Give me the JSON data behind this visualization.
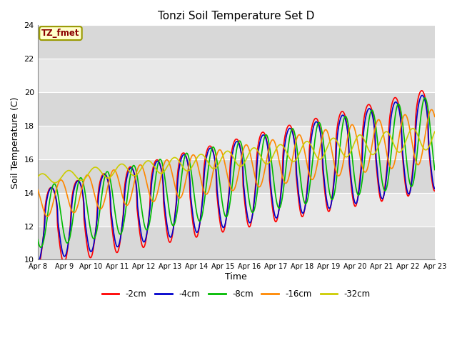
{
  "title": "Tonzi Soil Temperature Set D",
  "xlabel": "Time",
  "ylabel": "Soil Temperature (C)",
  "ylim": [
    10,
    24
  ],
  "xlim": [
    0,
    360
  ],
  "annotation": "TZ_fmet",
  "series": {
    "-2cm": {
      "color": "#ff0000",
      "lw": 1.2
    },
    "-4cm": {
      "color": "#0000cc",
      "lw": 1.2
    },
    "-8cm": {
      "color": "#00bb00",
      "lw": 1.2
    },
    "-16cm": {
      "color": "#ff8800",
      "lw": 1.2
    },
    "-32cm": {
      "color": "#cccc00",
      "lw": 1.2
    }
  },
  "xtick_positions": [
    0,
    24,
    48,
    72,
    96,
    120,
    144,
    168,
    192,
    216,
    240,
    264,
    288,
    312,
    336,
    360
  ],
  "xtick_labels": [
    "Apr 8",
    "Apr 9",
    "Apr 10",
    "Apr 11",
    "Apr 12",
    "Apr 13",
    "Apr 14",
    "Apr 15",
    "Apr 16",
    "Apr 17",
    "Apr 18",
    "Apr 19",
    "Apr 20",
    "Apr 21",
    "Apr 22",
    "Apr 23"
  ],
  "ytick_positions": [
    10,
    12,
    14,
    16,
    18,
    20,
    22,
    24
  ],
  "num_points": 720,
  "series_params": {
    "-2cm": {
      "base0": 11.8,
      "base1": 17.2,
      "amp0": 2.3,
      "amp1": 3.1,
      "phase": 6.0,
      "sharp": 2.5
    },
    "-4cm": {
      "base0": 12.0,
      "base1": 17.1,
      "amp0": 2.1,
      "amp1": 2.9,
      "phase": 6.5,
      "sharp": 2.0
    },
    "-8cm": {
      "base0": 12.5,
      "base1": 17.2,
      "amp0": 1.8,
      "amp1": 2.6,
      "phase": 9.0,
      "sharp": 1.0
    },
    "-16cm": {
      "base0": 13.5,
      "base1": 17.4,
      "amp0": 1.0,
      "amp1": 1.6,
      "phase": 15.0,
      "sharp": 1.0
    },
    "-32cm": {
      "base0": 14.8,
      "base1": 17.3,
      "amp0": 0.3,
      "amp1": 0.7,
      "phase": 22.0,
      "sharp": 1.0
    }
  }
}
